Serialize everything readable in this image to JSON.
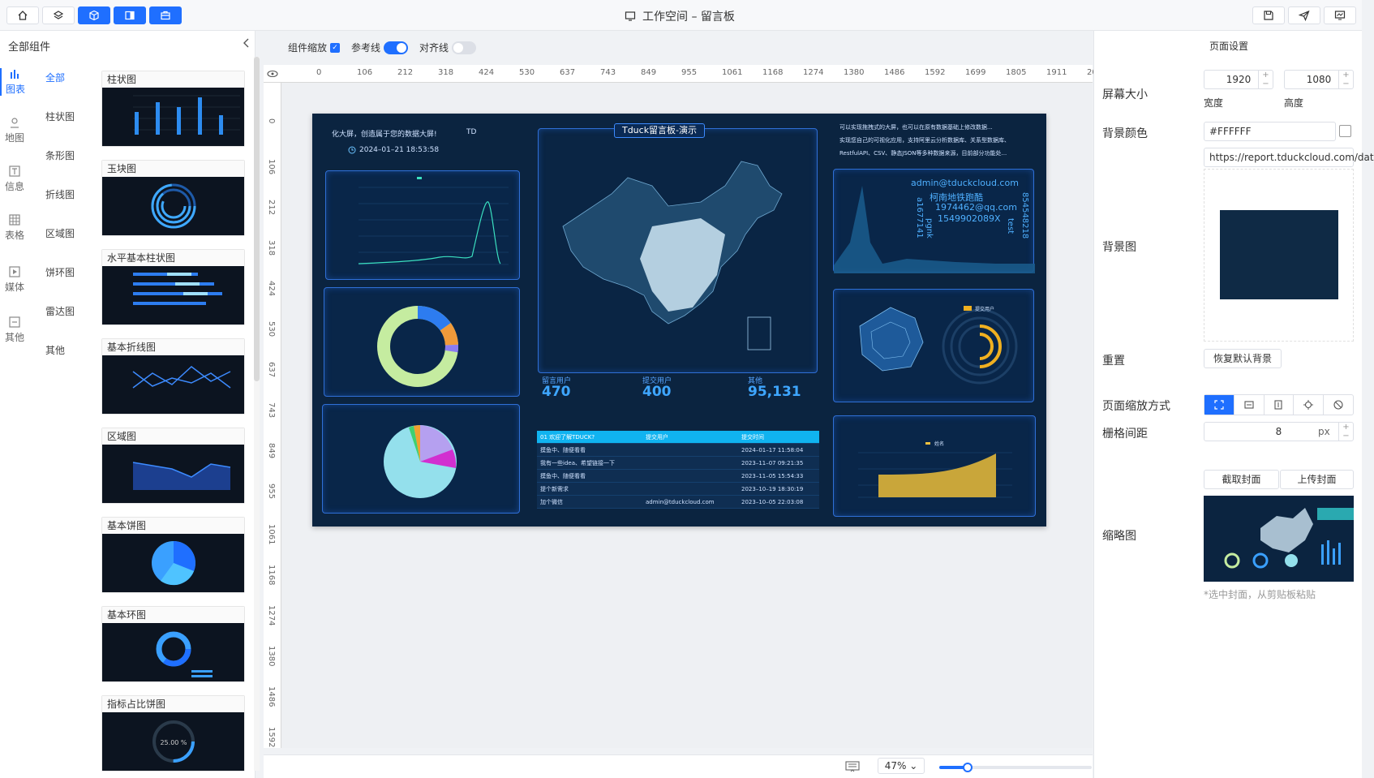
{
  "window": {
    "title": "工作空间 – 留言板"
  },
  "toolbar": {
    "left_buttons": [
      "home-icon",
      "layers-icon",
      "cube-icon",
      "layout-icon",
      "briefcase-icon"
    ],
    "right_buttons": [
      "save-icon",
      "send-icon",
      "preview-icon"
    ]
  },
  "sidebar": {
    "header": "全部组件",
    "categories": [
      {
        "label": "图表",
        "icon": "bar-chart-icon",
        "active": true
      },
      {
        "label": "地图",
        "icon": "map-pin-icon"
      },
      {
        "label": "信息",
        "icon": "text-icon"
      },
      {
        "label": "表格",
        "icon": "table-icon"
      },
      {
        "label": "媒体",
        "icon": "media-icon"
      },
      {
        "label": "其他",
        "icon": "other-icon"
      }
    ],
    "subcategories": [
      "全部",
      "柱状图",
      "条形图",
      "折线图",
      "区域图",
      "饼环图",
      "雷达图",
      "其他"
    ],
    "components": [
      "柱状图",
      "玉块图",
      "水平基本柱状图",
      "基本折线图",
      "区域图",
      "基本饼图",
      "基本环图",
      "指标占比饼图"
    ]
  },
  "options": {
    "scale_label": "组件缩放",
    "guide_label": "参考线",
    "align_label": "对齐线"
  },
  "ruler": {
    "h_ticks": [
      "0",
      "106",
      "212",
      "318",
      "424",
      "530",
      "637",
      "743",
      "849",
      "955",
      "1061",
      "1168",
      "1274",
      "1380",
      "1486",
      "1592",
      "1699",
      "1805",
      "1911",
      "20"
    ],
    "v_ticks": [
      "0",
      "106",
      "212",
      "318",
      "424",
      "530",
      "637",
      "743",
      "849",
      "955",
      "1061",
      "1168",
      "1274",
      "1380",
      "1486",
      "1592"
    ]
  },
  "screen": {
    "banner_text": "化大屏，创造属于您的数据大屏!",
    "td": "TD",
    "datetime": "2024–01–21 18:53:58",
    "center_title": "Tduck留言板-演示",
    "intro_lines": [
      "可以实现拖拽式的大屏，也可以在原有数据基础上修改数据...",
      "实现您自己的可视化应用，支持阿里云分析数据库、关系型数据库、",
      "RestfulAPI、CSV、静态JSON等多种数据来源，目前部分功能处..."
    ],
    "stats": [
      {
        "label": "留言用户",
        "value": "470"
      },
      {
        "label": "提交用户",
        "value": "400"
      },
      {
        "label": "其他",
        "value": "95,131"
      }
    ],
    "table": {
      "headers": [
        "01 欢迎了解TDUCK?",
        "提交用户",
        "提交时间"
      ],
      "rows": [
        [
          "摸鱼中、随便看看",
          "",
          "2024–01–17 11:58:04"
        ],
        [
          "我有一些idea、希望链接一下",
          "",
          "2023–11–07 09:21:35"
        ],
        [
          "摸鱼中、随便看看",
          "",
          "2023–11–05 15:54:33"
        ],
        [
          "提个新需求",
          "",
          "2023–10–19 18:30:19"
        ],
        [
          "加个微信",
          "admin@tduckcloud.com",
          "2023–10–05 22:03:08"
        ]
      ]
    },
    "wordcloud": [
      "admin@tduckcloud.com",
      "柯南地铁跑酷",
      "1974462@qq.com",
      "1549902089X",
      "854548218",
      "a1677141",
      "pgnk",
      "test"
    ],
    "radar_legend": "提交用户",
    "area_legend": "姓名"
  },
  "bottom": {
    "zoom": "47%",
    "zoom_value": 0.47
  },
  "right_panel": {
    "title": "页面设置",
    "screen_size_label": "屏幕大小",
    "width_value": "1920",
    "height_value": "1080",
    "width_label": "宽度",
    "height_label": "高度",
    "bg_color_label": "背景颜色",
    "bg_color_value": "#FFFFFF",
    "bg_image_label": "背景图",
    "bg_url": "https://report.tduckcloud.com/dat",
    "reset_label": "重置",
    "reset_button": "恢复默认背景",
    "scale_mode_label": "页面缩放方式",
    "grid_label": "栅格间距",
    "grid_value": "8",
    "grid_unit": "px",
    "capture_button": "截取封面",
    "upload_button": "上传封面",
    "thumb_label": "缩略图",
    "thumb_hint": "*选中封面，从剪贴板粘贴"
  },
  "colors": {
    "accent": "#1f6fff",
    "screen_bg": "#0b2440",
    "bg_preview": "#0f2a45"
  }
}
